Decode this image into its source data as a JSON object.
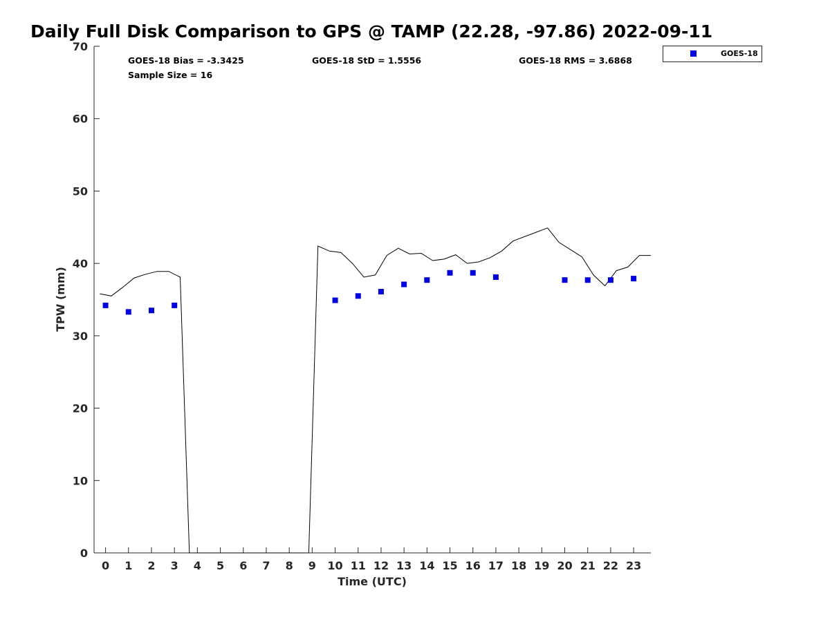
{
  "chart_data": {
    "type": "scatter",
    "title": "Daily Full Disk Comparison to GPS @ TAMP (22.28, -97.86) 2022-09-11",
    "xlabel": "Time (UTC)",
    "ylabel": "TPW (mm)",
    "xlim": [
      -0.5,
      23.75
    ],
    "ylim": [
      0,
      70
    ],
    "xticks": [
      "0",
      "1",
      "2",
      "3",
      "4",
      "5",
      "6",
      "7",
      "8",
      "9",
      "10",
      "11",
      "12",
      "13",
      "14",
      "15",
      "16",
      "17",
      "18",
      "19",
      "20",
      "21",
      "22",
      "23"
    ],
    "yticks": [
      "0",
      "10",
      "20",
      "30",
      "40",
      "50",
      "60",
      "70"
    ],
    "grid": false,
    "legend_position": "top-right (outside plot)",
    "stats": {
      "bias": "GOES-18 Bias = -3.3425",
      "std": "GOES-18 StD = 1.5556",
      "rms": "GOES-18 RMS = 3.6868",
      "sample": "Sample Size = 16"
    },
    "series": [
      {
        "name": "GOES-18",
        "kind": "scatter",
        "marker": "square",
        "color": "#0000e6",
        "x": [
          0,
          1,
          2,
          3,
          10,
          11,
          12,
          13,
          14,
          15,
          16,
          17,
          20,
          21,
          22,
          23
        ],
        "y": [
          34.2,
          33.3,
          33.5,
          34.2,
          34.9,
          35.5,
          36.1,
          37.1,
          37.7,
          38.7,
          38.7,
          38.1,
          37.7,
          37.7,
          37.7,
          37.9
        ]
      },
      {
        "kind": "line",
        "color": "#000000",
        "x": [
          -0.25,
          0.25,
          0.75,
          1.25,
          1.75,
          2.25,
          2.75,
          3.25,
          3.65,
          8.85,
          9.25,
          9.75,
          10.25,
          10.75,
          11.25,
          11.75,
          12.25,
          12.75,
          13.25,
          13.75,
          14.25,
          14.75,
          15.25,
          15.75,
          16.25,
          16.75,
          17.25,
          17.75,
          18.25,
          18.75,
          19.25,
          19.75,
          20.25,
          20.75,
          21.25,
          21.75,
          22.25,
          22.75,
          23.25,
          23.75
        ],
        "y": [
          35.8,
          35.5,
          36.7,
          38.0,
          38.5,
          38.9,
          38.9,
          38.1,
          0,
          0,
          42.4,
          41.7,
          41.5,
          40.0,
          38.1,
          38.4,
          41.1,
          42.1,
          41.3,
          41.4,
          40.4,
          40.6,
          41.2,
          40.0,
          40.2,
          40.8,
          41.7,
          43.1,
          43.7,
          44.3,
          44.9,
          42.9,
          41.9,
          40.9,
          38.4,
          36.9,
          39.0,
          39.5,
          41.1,
          41.1
        ]
      }
    ]
  }
}
